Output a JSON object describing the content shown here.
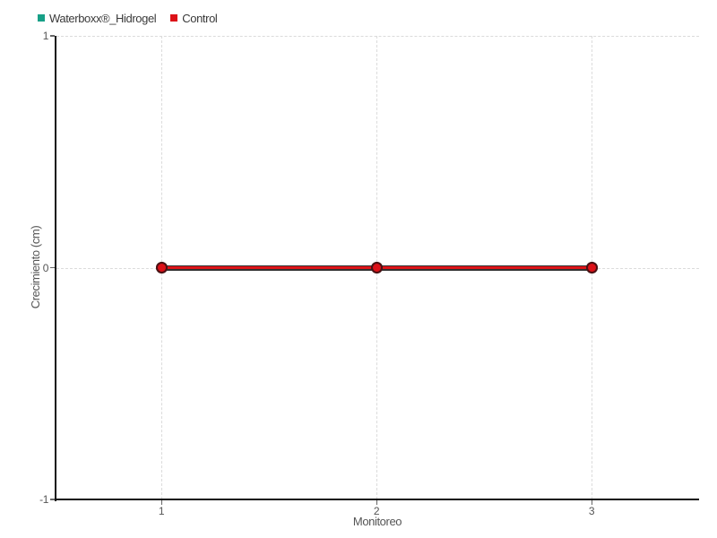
{
  "chart_data": {
    "type": "line",
    "x": [
      1,
      2,
      3
    ],
    "xticks": [
      "1",
      "2",
      "3"
    ],
    "yticks": [
      "1",
      "0",
      "-1"
    ],
    "ytick_values": [
      1,
      0,
      -1
    ],
    "ylim": [
      -1,
      1
    ],
    "series": [
      {
        "name": "Waterboxx®_Hidrogel",
        "values": [
          0,
          0,
          0
        ],
        "color": "#17A087",
        "marker_fill": "#17A087",
        "marker_stroke": "#0C5448"
      },
      {
        "name": "Control",
        "values": [
          0,
          0,
          0
        ],
        "color": "#DD1318",
        "marker_fill": "#DC1118",
        "marker_stroke": "#4E0F12"
      }
    ],
    "title": "",
    "xlabel": "Monitoreo",
    "ylabel": "Crecimiento (cm)",
    "grid": "dashed",
    "legend_position": "top-left",
    "colors": {
      "axis": "#111111",
      "grid": "#DBDBDB",
      "tick": "#666666",
      "tick_label": "#555555",
      "legend_text": "#3A3A3A",
      "line_stroke": "#303030",
      "background": "#FFFFFF"
    }
  }
}
